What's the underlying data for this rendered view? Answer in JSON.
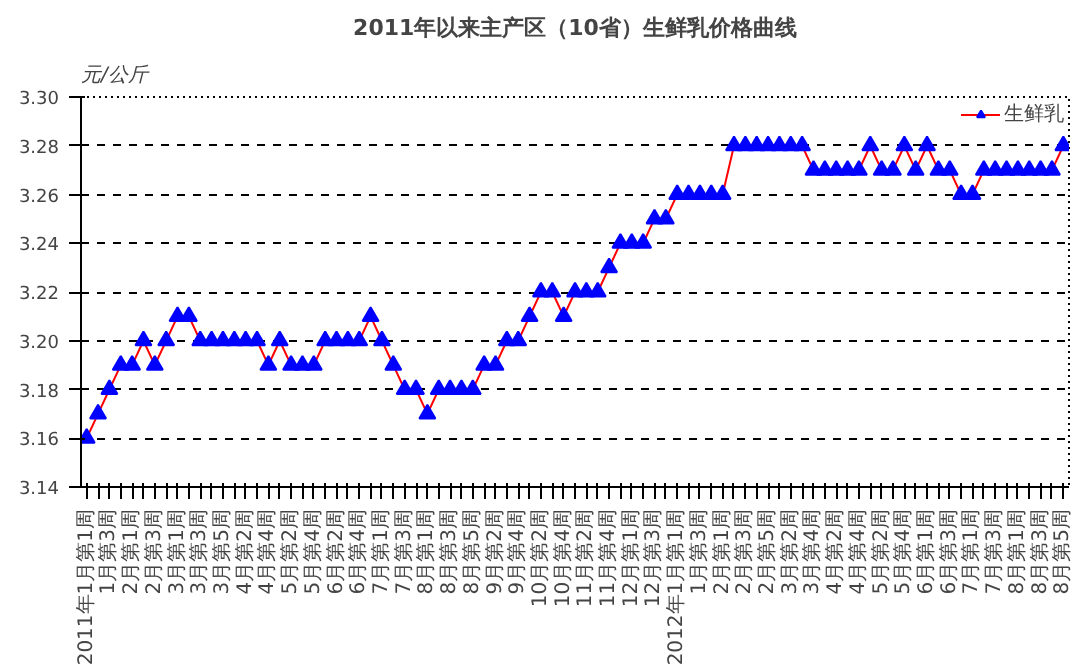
{
  "chart_data": {
    "type": "line",
    "title": "2011年以来主产区（10省）生鲜乳价格曲线",
    "ylabel": "元/公斤",
    "categories": [
      "2011年1月第1周",
      null,
      "1月第3周",
      null,
      "2月第1周",
      null,
      "2月第3周",
      null,
      "3月第1周",
      null,
      "3月第3周",
      null,
      "3月第5周",
      null,
      "4月第2周",
      null,
      "4月第4周",
      null,
      "5月第2周",
      null,
      "5月第4周",
      null,
      "6月第2周",
      null,
      "6月第4周",
      null,
      "7月第1周",
      null,
      "7月第3周",
      null,
      "8月第1周",
      null,
      "8月第3周",
      null,
      "8月第5周",
      null,
      "9月第2周",
      null,
      "9月第4周",
      null,
      "10月第2周",
      null,
      "10月第4周",
      null,
      "11月第2周",
      null,
      "11月第4周",
      null,
      "12月第1周",
      null,
      "12月第3周",
      null,
      "2012年1月第1周",
      null,
      "1月第3周",
      null,
      "2月第1周",
      null,
      "2月第3周",
      null,
      "2月第5周",
      null,
      "3月第2周",
      null,
      "3月第4周",
      null,
      "4月第2周",
      null,
      "4月第4周",
      null,
      "5月第2周",
      null,
      "5月第4周",
      null,
      "6月第1周",
      null,
      "6月第3周",
      null,
      "7月第1周",
      null,
      "7月第3周",
      null,
      "8月第1周",
      null,
      "8月第3周",
      null,
      "8月第5周"
    ],
    "series": [
      {
        "name": "生鲜乳",
        "color": "#0000ff",
        "values": [
          3.16,
          3.17,
          3.18,
          3.19,
          3.19,
          3.2,
          3.19,
          3.2,
          3.21,
          3.21,
          3.2,
          3.2,
          3.2,
          3.2,
          3.2,
          3.2,
          3.19,
          3.2,
          3.19,
          3.19,
          3.19,
          3.2,
          3.2,
          3.2,
          3.2,
          3.21,
          3.2,
          3.19,
          3.18,
          3.18,
          3.17,
          3.18,
          3.18,
          3.18,
          3.18,
          3.19,
          3.19,
          3.2,
          3.2,
          3.21,
          3.22,
          3.22,
          3.21,
          3.22,
          3.22,
          3.22,
          3.23,
          3.24,
          3.24,
          3.24,
          3.25,
          3.25,
          3.26,
          3.26,
          3.26,
          3.26,
          3.26,
          3.28,
          3.28,
          3.28,
          3.28,
          3.28,
          3.28,
          3.28,
          3.27,
          3.27,
          3.27,
          3.27,
          3.27,
          3.28,
          3.27,
          3.27,
          3.28,
          3.27,
          3.28,
          3.27,
          3.27,
          3.26,
          3.26,
          3.27,
          3.27,
          3.27,
          3.27,
          3.27,
          3.27,
          3.27,
          3.28
        ]
      }
    ],
    "ylim": [
      3.14,
      3.3
    ],
    "yticks": [
      {
        "value": 3.14,
        "label": "3.14"
      },
      {
        "value": 3.16,
        "label": "3.16"
      },
      {
        "value": 3.18,
        "label": "3.18"
      },
      {
        "value": 3.2,
        "label": "3.20"
      },
      {
        "value": 3.22,
        "label": "3.22"
      },
      {
        "value": 3.24,
        "label": "3.24"
      },
      {
        "value": 3.26,
        "label": "3.26"
      },
      {
        "value": 3.28,
        "label": "3.28"
      },
      {
        "value": 3.3,
        "label": "3.30"
      }
    ],
    "grid": "y",
    "legend": "top right",
    "marker": "triangle",
    "line_style": "solid"
  }
}
